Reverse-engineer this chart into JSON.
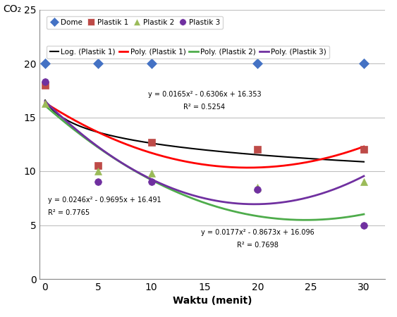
{
  "title": "",
  "xlabel": "Waktu (menit)",
  "ylabel": "CO₂",
  "xlim": [
    -0.5,
    32
  ],
  "ylim": [
    0,
    25
  ],
  "xticks": [
    0,
    5,
    10,
    15,
    20,
    25,
    30
  ],
  "yticks": [
    0,
    5,
    10,
    15,
    20,
    25
  ],
  "dome": {
    "x": [
      0,
      5,
      10,
      20,
      30
    ],
    "y": [
      20,
      20,
      20,
      20,
      20
    ],
    "color": "#4472C4",
    "marker": "D",
    "markersize": 7,
    "label": "Dome"
  },
  "plastik1": {
    "x": [
      0,
      5,
      10,
      20,
      30
    ],
    "y": [
      18,
      10.5,
      12.7,
      12,
      12
    ],
    "color": "#BE4B48",
    "marker": "s",
    "markersize": 7,
    "label": "Plastik 1"
  },
  "plastik2": {
    "x": [
      0,
      5,
      10,
      20,
      30
    ],
    "y": [
      16.3,
      10,
      9.8,
      8.5,
      9
    ],
    "color": "#9BBB59",
    "marker": "^",
    "markersize": 7,
    "label": "Plastik 2"
  },
  "plastik3": {
    "x": [
      0,
      5,
      10,
      20,
      30
    ],
    "y": [
      18.3,
      9,
      9,
      8.3,
      5
    ],
    "color": "#7030A0",
    "marker": "o",
    "markersize": 7,
    "label": "Plastik 3"
  },
  "log_plastik1": {
    "color": "#000000",
    "label": "Log. (Plastik 1)",
    "coeffs_log": [
      16.5,
      -2.3
    ]
  },
  "poly_plastik1": {
    "color": "#FF0000",
    "label": "Poly. (Plastik 1)",
    "equation": "y = 0.0165x² - 0.6306x + 16.353",
    "r2": "R² = 0.5254",
    "eq_x": 15,
    "eq_y": 16.8,
    "coeffs": [
      0.0165,
      -0.6306,
      16.353
    ]
  },
  "poly_plastik2": {
    "color": "#4EAC4B",
    "label": "Poly. (Plastik 2)",
    "equation": "y = 0.0177x² - 0.8673x + 16.096",
    "r2": "R² = 0.7698",
    "eq_x": 20,
    "eq_y": 4.0,
    "coeffs": [
      0.0177,
      -0.8673,
      16.096
    ]
  },
  "poly_plastik3": {
    "color": "#7030A0",
    "label": "Poly. (Plastik 3)",
    "equation": "y = 0.0246x² - 0.9695x + 16.491",
    "r2": "R² = 0.7765",
    "eq_x": 0.3,
    "eq_y": 7.0,
    "coeffs": [
      0.0246,
      -0.9695,
      16.491
    ]
  },
  "background_color": "#FFFFFF",
  "grid_color": "#C0C0C0"
}
